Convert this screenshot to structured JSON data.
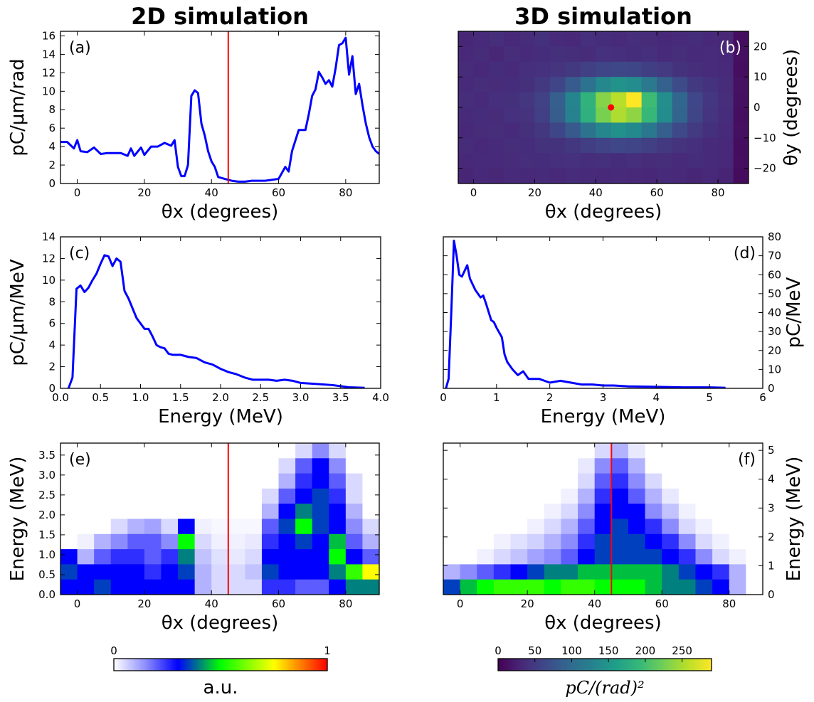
{
  "chart_data": [
    {
      "type": "line",
      "title": "2D simulation",
      "label": "(a)",
      "label_corner": "upper left",
      "xlabel": "θx (degrees)",
      "ylabel": "pC/μm/rad",
      "yaxis_side": "left",
      "color": "#0000ff",
      "xlim": [
        -5,
        90
      ],
      "ylim": [
        0,
        16.5
      ],
      "xticks": [
        0,
        20,
        40,
        60,
        80
      ],
      "yticks": [
        0,
        2,
        4,
        6,
        8,
        10,
        12,
        14,
        16
      ],
      "vline": 45,
      "vline_color": "#ff0000",
      "x": [
        -5,
        -3,
        -1,
        0,
        1,
        3,
        5,
        7,
        9,
        11,
        13,
        15,
        16,
        17,
        19,
        20,
        22,
        24,
        26,
        28,
        29,
        30,
        31,
        32,
        33,
        34,
        35,
        36,
        37,
        38,
        39,
        40,
        41,
        42,
        44,
        46,
        48,
        50,
        52,
        54,
        56,
        58,
        60,
        62,
        63,
        64,
        66,
        68,
        69,
        70,
        71,
        72,
        73,
        74,
        75,
        76,
        77,
        78,
        79,
        80,
        81,
        82,
        83,
        84,
        85,
        86,
        87,
        88,
        89,
        90
      ],
      "values": [
        4.5,
        4.5,
        3.8,
        4.7,
        3.5,
        3.4,
        3.9,
        3.2,
        3.3,
        3.3,
        3.3,
        3.0,
        3.8,
        3.0,
        3.9,
        3.1,
        4.0,
        4.0,
        4.4,
        4.1,
        4.7,
        1.8,
        0.8,
        0.8,
        2.0,
        9.5,
        10.1,
        9.8,
        6.5,
        5.2,
        3.5,
        2.4,
        1.8,
        0.7,
        0.5,
        0.3,
        0.2,
        0.2,
        0.3,
        0.3,
        0.3,
        0.4,
        0.5,
        1.8,
        1.3,
        3.5,
        5.8,
        5.8,
        7.5,
        9.5,
        10.2,
        12.1,
        11.5,
        10.8,
        11.2,
        10.5,
        12.5,
        15.0,
        15.2,
        15.8,
        11.8,
        13.8,
        9.7,
        10.8,
        8.5,
        6.5,
        5.0,
        4.0,
        3.5,
        3.2
      ]
    },
    {
      "type": "heatmap",
      "title": "3D simulation",
      "label": "(b)",
      "label_corner": "upper right",
      "xlabel": "θx (degrees)",
      "ylabel": "θy (degrees)",
      "yaxis_side": "right",
      "colormap": "viridis",
      "origin": "upper",
      "xlim": [
        -5,
        90
      ],
      "ylim": [
        -25,
        25
      ],
      "xticks": [
        0,
        20,
        40,
        60,
        80
      ],
      "yticks": [
        {
          "value": -20,
          "label": "−20"
        },
        {
          "value": -10,
          "label": "−10"
        },
        0,
        10,
        20
      ],
      "marker": {
        "x": 45,
        "y": 0,
        "color": "#ff0000"
      },
      "colorbar": {
        "label": "pC/(rad)²",
        "lim": [
          0,
          290
        ],
        "ticks": [
          0,
          50,
          100,
          150,
          200,
          250
        ]
      },
      "z": [
        [
          30,
          34,
          38,
          32,
          36,
          40,
          35,
          33,
          39,
          37,
          34,
          38,
          36,
          32,
          35,
          37,
          33,
          31,
          10
        ],
        [
          33,
          36,
          31,
          38,
          35,
          37,
          40,
          38,
          36,
          41,
          39,
          37,
          40,
          35,
          38,
          34,
          36,
          32,
          12
        ],
        [
          36,
          32,
          37,
          35,
          39,
          41,
          44,
          48,
          55,
          60,
          63,
          61,
          54,
          49,
          42,
          38,
          36,
          34,
          11
        ],
        [
          34,
          38,
          36,
          37,
          40,
          48,
          60,
          82,
          108,
          134,
          147,
          139,
          116,
          88,
          66,
          48,
          42,
          36,
          13
        ],
        [
          38,
          35,
          39,
          40,
          45,
          57,
          86,
          130,
          185,
          234,
          256,
          290,
          196,
          141,
          95,
          62,
          46,
          38,
          12
        ],
        [
          35,
          37,
          36,
          41,
          43,
          55,
          84,
          127,
          182,
          228,
          252,
          238,
          192,
          139,
          93,
          60,
          44,
          37,
          11
        ],
        [
          33,
          36,
          38,
          35,
          40,
          47,
          61,
          80,
          110,
          132,
          144,
          136,
          114,
          86,
          64,
          49,
          40,
          35,
          12
        ],
        [
          36,
          33,
          35,
          38,
          37,
          42,
          42,
          47,
          53,
          59,
          62,
          60,
          55,
          48,
          43,
          39,
          35,
          33,
          10
        ],
        [
          32,
          35,
          34,
          36,
          38,
          37,
          39,
          41,
          38,
          40,
          37,
          39,
          36,
          38,
          35,
          37,
          34,
          32,
          11
        ],
        [
          30,
          33,
          31,
          34,
          32,
          35,
          33,
          36,
          34,
          32,
          35,
          33,
          31,
          34,
          32,
          30,
          33,
          29,
          9
        ]
      ]
    },
    {
      "type": "line",
      "label": "(c)",
      "label_corner": "upper left",
      "xlabel": "Energy (MeV)",
      "ylabel": "pC/μm/MeV",
      "yaxis_side": "left",
      "color": "#0000ff",
      "xlim": [
        0,
        4
      ],
      "ylim": [
        0,
        14
      ],
      "xticks": [
        {
          "value": 0,
          "label": "0.0"
        },
        {
          "value": 0.5,
          "label": "0.5"
        },
        {
          "value": 1,
          "label": "1.0"
        },
        {
          "value": 1.5,
          "label": "1.5"
        },
        {
          "value": 2,
          "label": "2.0"
        },
        {
          "value": 2.5,
          "label": "2.5"
        },
        {
          "value": 3,
          "label": "3.0"
        },
        {
          "value": 3.5,
          "label": "3.5"
        },
        {
          "value": 4,
          "label": "4.0"
        }
      ],
      "yticks": [
        0,
        2,
        4,
        6,
        8,
        10,
        12,
        14
      ],
      "x": [
        0.1,
        0.15,
        0.2,
        0.25,
        0.3,
        0.35,
        0.4,
        0.45,
        0.5,
        0.55,
        0.6,
        0.65,
        0.7,
        0.75,
        0.8,
        0.85,
        0.9,
        0.95,
        1.0,
        1.05,
        1.1,
        1.15,
        1.2,
        1.25,
        1.3,
        1.35,
        1.4,
        1.5,
        1.6,
        1.7,
        1.8,
        1.9,
        2.0,
        2.1,
        2.2,
        2.3,
        2.4,
        2.5,
        2.6,
        2.7,
        2.8,
        2.9,
        3.0,
        3.2,
        3.4,
        3.6,
        3.8
      ],
      "values": [
        0,
        1,
        9.2,
        9.5,
        8.9,
        9.3,
        10.0,
        10.6,
        11.5,
        12.3,
        12.2,
        11.3,
        12.0,
        11.7,
        9.0,
        8.3,
        7.4,
        6.5,
        6.0,
        5.5,
        5.5,
        4.8,
        4.0,
        3.8,
        3.7,
        3.2,
        3.1,
        3.1,
        2.9,
        2.8,
        2.4,
        2.2,
        1.8,
        1.5,
        1.3,
        1.0,
        0.8,
        0.8,
        0.8,
        0.7,
        0.8,
        0.7,
        0.5,
        0.4,
        0.3,
        0.1,
        0.05
      ]
    },
    {
      "type": "line",
      "label": "(d)",
      "label_corner": "upper right",
      "xlabel": "Energy (MeV)",
      "ylabel": "pC/MeV",
      "yaxis_side": "right",
      "color": "#0000ff",
      "xlim": [
        0,
        6
      ],
      "ylim": [
        0,
        80
      ],
      "xticks": [
        0,
        1,
        2,
        3,
        4,
        5,
        6
      ],
      "yticks": [
        0,
        10,
        20,
        30,
        40,
        50,
        60,
        70,
        80
      ],
      "x": [
        0.05,
        0.1,
        0.15,
        0.2,
        0.25,
        0.3,
        0.35,
        0.4,
        0.45,
        0.5,
        0.6,
        0.7,
        0.75,
        0.8,
        0.9,
        0.95,
        1.0,
        1.1,
        1.15,
        1.2,
        1.3,
        1.4,
        1.5,
        1.6,
        1.8,
        2.0,
        2.2,
        2.4,
        2.6,
        2.8,
        3.0,
        3.2,
        3.5,
        4.0,
        4.5,
        5.0,
        5.3
      ],
      "values": [
        0,
        5,
        40,
        78,
        70,
        60,
        59,
        62,
        65,
        58,
        52,
        48,
        49,
        45,
        36,
        35,
        32,
        27,
        18,
        14,
        10,
        7,
        9,
        5,
        5,
        3,
        4,
        3,
        2,
        2,
        1.5,
        1.5,
        1,
        0.8,
        0.5,
        0.5,
        0.3
      ]
    },
    {
      "type": "heatmap",
      "label": "(e)",
      "label_corner": "upper left",
      "xlabel": "θx (degrees)",
      "ylabel": "Energy (MeV)",
      "yaxis_side": "left",
      "colormap": "white-jet",
      "origin": "upper",
      "xlim": [
        -5,
        90
      ],
      "ylim": [
        0,
        3.8
      ],
      "xticks": [
        0,
        20,
        40,
        60,
        80
      ],
      "yticks": [
        {
          "value": 0,
          "label": "0.0"
        },
        {
          "value": 0.5,
          "label": "0.5"
        },
        {
          "value": 1,
          "label": "1.0"
        },
        {
          "value": 1.5,
          "label": "1.5"
        },
        {
          "value": 2,
          "label": "2.0"
        },
        {
          "value": 2.5,
          "label": "2.5"
        },
        {
          "value": 3,
          "label": "3.0"
        },
        {
          "value": 3.5,
          "label": "3.5"
        }
      ],
      "vline": 45,
      "vline_color": "#ff0000",
      "colorbar": {
        "label": "a.u.",
        "lim": [
          0,
          1
        ],
        "ticks": [
          0,
          1
        ]
      },
      "z": [
        [
          0,
          0,
          0,
          0,
          0,
          0,
          0,
          0,
          0,
          0,
          0,
          0,
          0,
          0,
          0.05,
          0.15,
          0.05,
          0,
          0
        ],
        [
          0,
          0,
          0,
          0,
          0,
          0,
          0,
          0,
          0,
          0,
          0,
          0,
          0,
          0.05,
          0.2,
          0.3,
          0.15,
          0,
          0
        ],
        [
          0,
          0,
          0,
          0,
          0,
          0,
          0,
          0,
          0,
          0,
          0,
          0,
          0,
          0.1,
          0.25,
          0.3,
          0.2,
          0.05,
          0
        ],
        [
          0,
          0,
          0,
          0,
          0,
          0,
          0,
          0,
          0,
          0,
          0,
          0,
          0.05,
          0.2,
          0.3,
          0.35,
          0.25,
          0.05,
          0
        ],
        [
          0,
          0,
          0,
          0,
          0,
          0,
          0,
          0,
          0,
          0,
          0,
          0,
          0.1,
          0.3,
          0.4,
          0.35,
          0.3,
          0.1,
          0
        ],
        [
          0,
          0,
          0,
          0.05,
          0.1,
          0.12,
          0.05,
          0.3,
          0.02,
          0.01,
          0.01,
          0.01,
          0.2,
          0.35,
          0.5,
          0.35,
          0.3,
          0.15,
          0.05
        ],
        [
          0,
          0.02,
          0.1,
          0.15,
          0.2,
          0.2,
          0.15,
          0.5,
          0.05,
          0.02,
          0.02,
          0.03,
          0.25,
          0.3,
          0.35,
          0.3,
          0.45,
          0.2,
          0.1
        ],
        [
          0.3,
          0.1,
          0.2,
          0.25,
          0.25,
          0.2,
          0.25,
          0.4,
          0.08,
          0.04,
          0.03,
          0.05,
          0.3,
          0.3,
          0.3,
          0.3,
          0.5,
          0.3,
          0.2
        ],
        [
          0.35,
          0.3,
          0.3,
          0.3,
          0.3,
          0.25,
          0.3,
          0.35,
          0.1,
          0.05,
          0.05,
          0.08,
          0.35,
          0.3,
          0.3,
          0.3,
          0.4,
          0.55,
          0.75
        ],
        [
          0.3,
          0.3,
          0.35,
          0.3,
          0.3,
          0.3,
          0.3,
          0.3,
          0.1,
          0.05,
          0.05,
          0.05,
          0.25,
          0.25,
          0.2,
          0.2,
          0.3,
          0.4,
          0.4
        ]
      ]
    },
    {
      "type": "heatmap",
      "label": "(f)",
      "label_corner": "upper right",
      "xlabel": "θx (degrees)",
      "ylabel": "Energy (MeV)",
      "yaxis_side": "right",
      "colormap": "white-jet",
      "origin": "upper",
      "xlim": [
        -5,
        90
      ],
      "ylim": [
        0,
        5.25
      ],
      "xticks": [
        0,
        20,
        40,
        60,
        80
      ],
      "yticks": [
        0,
        1,
        2,
        3,
        4,
        5
      ],
      "vline": 45,
      "vline_color": "#ff0000",
      "clim": [
        0,
        1
      ],
      "z": [
        [
          0,
          0,
          0,
          0,
          0,
          0,
          0,
          0,
          0,
          0.05,
          0.1,
          0.03,
          0,
          0,
          0,
          0,
          0,
          0,
          0
        ],
        [
          0,
          0,
          0,
          0,
          0,
          0,
          0,
          0,
          0.03,
          0.15,
          0.2,
          0.1,
          0,
          0,
          0,
          0,
          0,
          0,
          0
        ],
        [
          0,
          0,
          0,
          0,
          0,
          0,
          0,
          0,
          0.05,
          0.2,
          0.25,
          0.15,
          0.05,
          0,
          0,
          0,
          0,
          0,
          0
        ],
        [
          0,
          0,
          0,
          0,
          0,
          0,
          0,
          0.02,
          0.1,
          0.25,
          0.3,
          0.2,
          0.1,
          0.03,
          0,
          0,
          0,
          0,
          0
        ],
        [
          0,
          0,
          0,
          0,
          0,
          0,
          0.02,
          0.05,
          0.15,
          0.3,
          0.3,
          0.3,
          0.15,
          0.08,
          0.02,
          0,
          0,
          0,
          0
        ],
        [
          0,
          0,
          0,
          0,
          0,
          0.02,
          0.05,
          0.1,
          0.2,
          0.3,
          0.35,
          0.3,
          0.25,
          0.15,
          0.05,
          0.02,
          0,
          0,
          0
        ],
        [
          0,
          0,
          0,
          0.02,
          0.04,
          0.06,
          0.1,
          0.15,
          0.25,
          0.35,
          0.35,
          0.35,
          0.3,
          0.25,
          0.15,
          0.05,
          0.02,
          0,
          0
        ],
        [
          0,
          0,
          0.02,
          0.05,
          0.08,
          0.12,
          0.15,
          0.2,
          0.3,
          0.35,
          0.35,
          0.35,
          0.35,
          0.3,
          0.25,
          0.15,
          0.05,
          0.02,
          0
        ],
        [
          0.1,
          0.15,
          0.2,
          0.25,
          0.3,
          0.35,
          0.4,
          0.4,
          0.45,
          0.45,
          0.45,
          0.45,
          0.45,
          0.4,
          0.35,
          0.3,
          0.25,
          0.1,
          0
        ],
        [
          0.35,
          0.45,
          0.5,
          0.55,
          0.55,
          0.55,
          0.5,
          0.55,
          0.55,
          0.5,
          0.5,
          0.5,
          0.45,
          0.4,
          0.4,
          0.35,
          0.3,
          0.1,
          0
        ]
      ]
    }
  ]
}
